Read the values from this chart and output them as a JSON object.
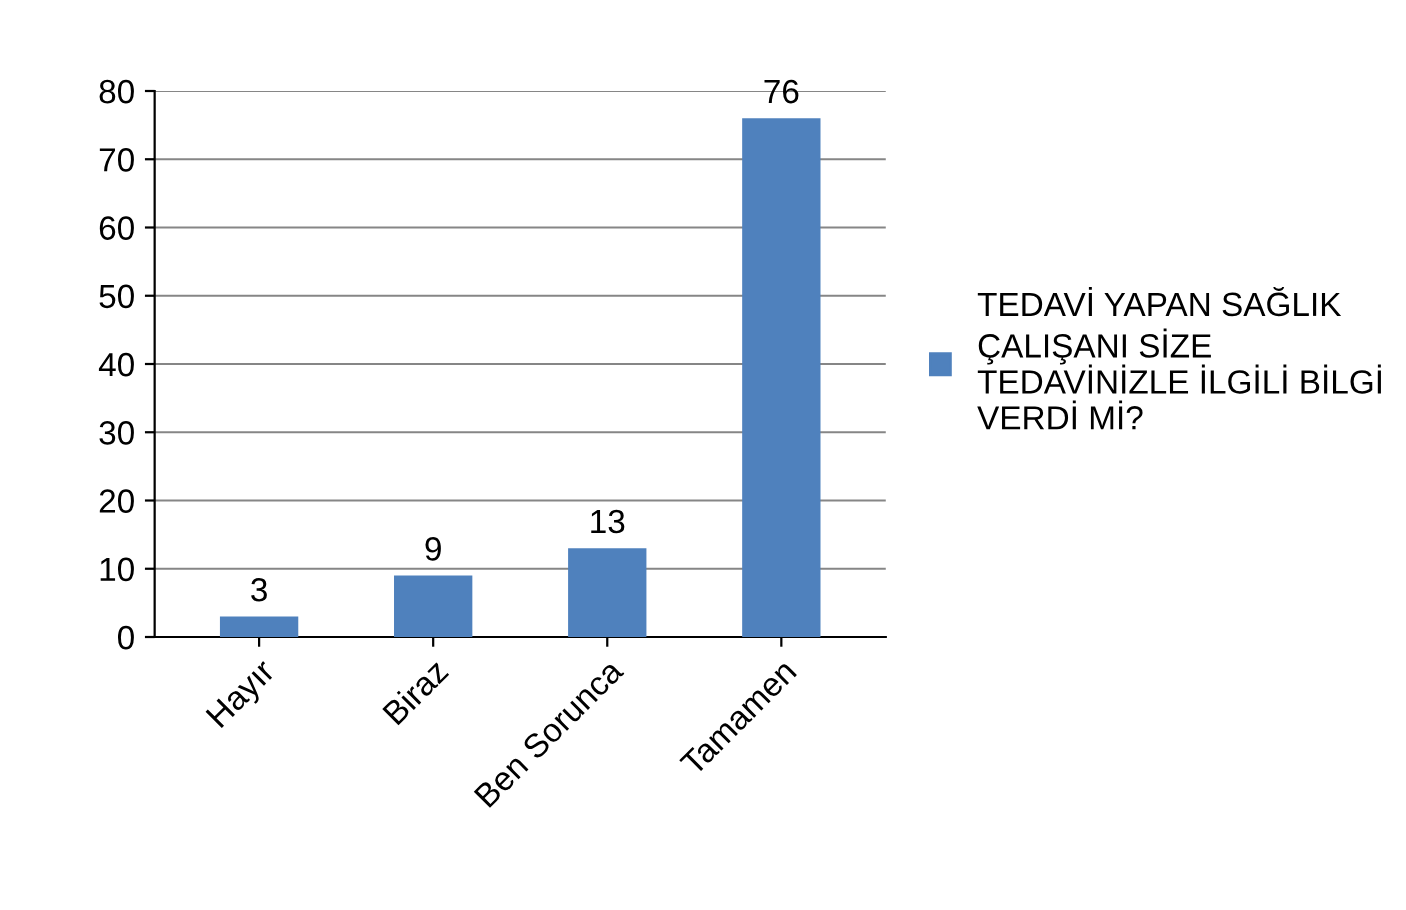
{
  "chart_data": {
    "type": "bar",
    "categories": [
      "Hayır",
      "Biraz",
      "Ben Sorunca",
      "Tamamen"
    ],
    "series": [
      {
        "name": "TEDAVİ YAPAN SAĞLIK ÇALIŞANI SİZE TEDAVİNİZLE İLGİLİ BİLGİ VERDİ Mİ?",
        "color": "#4f81bd",
        "values": [
          3,
          9,
          13,
          76
        ]
      }
    ],
    "ylim": [
      0,
      80
    ],
    "yticks": [
      0,
      10,
      20,
      30,
      40,
      50,
      60,
      70,
      80
    ],
    "grid": "y",
    "legend": "right",
    "data_labels": true
  }
}
